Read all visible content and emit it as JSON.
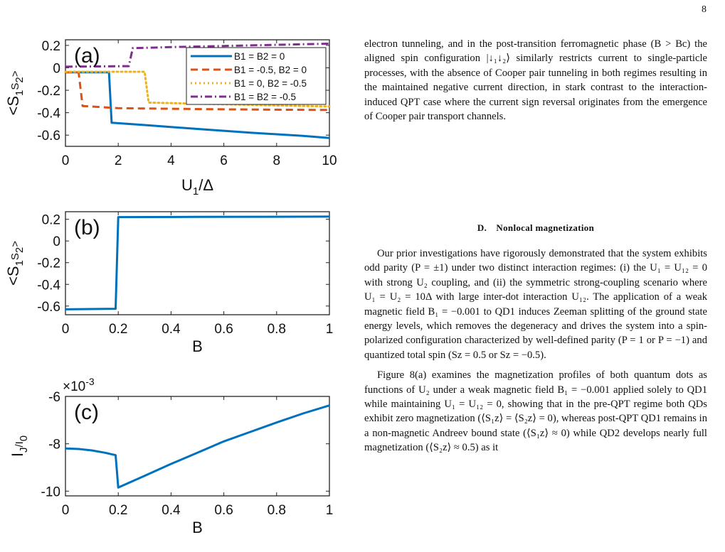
{
  "page_number": "8",
  "section_heading": "D. Nonlocal magnetization",
  "paragraphs_top": [
    "electron tunneling, and in the post-transition ferromagnetic phase (B > Bc) the aligned spin configuration |↓₁↓₂⟩ similarly restricts current to single-particle processes, with the absence of Cooper pair tunneling in both regimes resulting in the maintained negative current direction, in stark contrast to the interaction-induced QPT case where the current sign reversal originates from the emergence of Cooper pair transport channels."
  ],
  "paragraphs_bottom": [
    "Our prior investigations have rigorously demonstrated that the system exhibits odd parity (P = ±1) under two distinct interaction regimes: (i) the U₁ = U₁₂ = 0 with strong U₂ coupling, and (ii) the symmetric strong-coupling scenario where U₁ = U₂ = 10Δ with large inter-dot interaction U₁₂. The application of a weak magnetic field B₁ = −0.001 to QD1 induces Zeeman splitting of the ground state energy levels, which removes the degeneracy and drives the system into a spin-polarized configuration characterized by well-defined parity (P = 1 or P = −1) and quantized total spin (Sz = 0.5 or Sz = −0.5).",
    "Figure 8(a) examines the magnetization profiles of both quantum dots as functions of U₂ under a weak magnetic field B₁ = −0.001 applied solely to QD1 while maintaining U₁ = U₁₂ = 0, showing that in the pre-QPT regime both QDs exhibit zero magnetization (⟨S₁z⟩ = ⟨S₂z⟩ = 0), whereas post-QPT QD1 remains in a non-magnetic Andreev bound state (⟨S₁z⟩ ≈ 0) while QD2 develops nearly full magnetization (⟨S₂z⟩ ≈ 0.5) as it"
  ],
  "chart_data": [
    {
      "type": "line",
      "panel_label": "(a)",
      "xlabel": "U1/Δ",
      "ylabel": "<S1S2>",
      "xlim": [
        0,
        10
      ],
      "ylim": [
        -0.7,
        0.25
      ],
      "xticks": [
        "0",
        "2",
        "4",
        "6",
        "8",
        "10"
      ],
      "yticks": [
        "0.2",
        "0",
        "-0.2",
        "-0.4",
        "-0.6"
      ],
      "legend_position": "top-right",
      "series": [
        {
          "name": "B1 = B2 = 0",
          "color": "#0072BD",
          "dash": "solid",
          "points": [
            [
              0,
              -0.04
            ],
            [
              1.65,
              -0.04
            ],
            [
              1.75,
              -0.49
            ],
            [
              3,
              -0.51
            ],
            [
              5,
              -0.545
            ],
            [
              7,
              -0.578
            ],
            [
              9,
              -0.607
            ],
            [
              10,
              -0.625
            ]
          ]
        },
        {
          "name": "B1 = -0.5, B2 = 0",
          "color": "#D95319",
          "dash": "dash",
          "points": [
            [
              0,
              -0.04
            ],
            [
              0.5,
              -0.04
            ],
            [
              0.65,
              -0.34
            ],
            [
              2,
              -0.36
            ],
            [
              4,
              -0.365
            ],
            [
              6,
              -0.37
            ],
            [
              8,
              -0.373
            ],
            [
              10,
              -0.376
            ]
          ]
        },
        {
          "name": "B1 = 0, B2 = -0.5",
          "color": "#EDB120",
          "dash": "dot",
          "points": [
            [
              0,
              -0.035
            ],
            [
              3,
              -0.035
            ],
            [
              3.15,
              -0.31
            ],
            [
              5,
              -0.32
            ],
            [
              7,
              -0.33
            ],
            [
              9,
              -0.34
            ],
            [
              10,
              -0.345
            ]
          ]
        },
        {
          "name": "B1 = B2 = -0.5",
          "color": "#7E2F8E",
          "dash": "dashdot",
          "points": [
            [
              0,
              0.01
            ],
            [
              2.4,
              0.015
            ],
            [
              2.55,
              0.175
            ],
            [
              4,
              0.185
            ],
            [
              6,
              0.195
            ],
            [
              8,
              0.205
            ],
            [
              10,
              0.215
            ]
          ]
        }
      ]
    },
    {
      "type": "line",
      "panel_label": "(b)",
      "xlabel": "B",
      "ylabel": "<S1S2>",
      "xlim": [
        0,
        1
      ],
      "ylim": [
        -0.68,
        0.27
      ],
      "xticks": [
        "0",
        "0.2",
        "0.4",
        "0.6",
        "0.8",
        "1"
      ],
      "yticks": [
        "0.2",
        "0",
        "-0.2",
        "-0.4",
        "-0.6"
      ],
      "series": [
        {
          "color": "#0072BD",
          "dash": "solid",
          "points": [
            [
              0,
              -0.63
            ],
            [
              0.19,
              -0.625
            ],
            [
              0.2,
              0.22
            ],
            [
              0.5,
              0.222
            ],
            [
              1,
              0.225
            ]
          ]
        }
      ]
    },
    {
      "type": "line",
      "panel_label": "(c)",
      "xlabel": "B",
      "ylabel": "IJ/I0",
      "y_scale_label": "×10-3",
      "xlim": [
        0,
        1
      ],
      "ylim": [
        -10.2,
        -6
      ],
      "xticks": [
        "0",
        "0.2",
        "0.4",
        "0.6",
        "0.8",
        "1"
      ],
      "yticks": [
        "-6",
        "-8",
        "-10"
      ],
      "series": [
        {
          "color": "#0072BD",
          "dash": "solid",
          "points": [
            [
              0,
              -8.2
            ],
            [
              0.05,
              -8.22
            ],
            [
              0.1,
              -8.28
            ],
            [
              0.15,
              -8.38
            ],
            [
              0.19,
              -8.48
            ],
            [
              0.2,
              -9.85
            ],
            [
              0.3,
              -9.35
            ],
            [
              0.4,
              -8.85
            ],
            [
              0.5,
              -8.38
            ],
            [
              0.6,
              -7.9
            ],
            [
              0.7,
              -7.5
            ],
            [
              0.8,
              -7.1
            ],
            [
              0.9,
              -6.72
            ],
            [
              1,
              -6.38
            ]
          ]
        }
      ]
    }
  ]
}
